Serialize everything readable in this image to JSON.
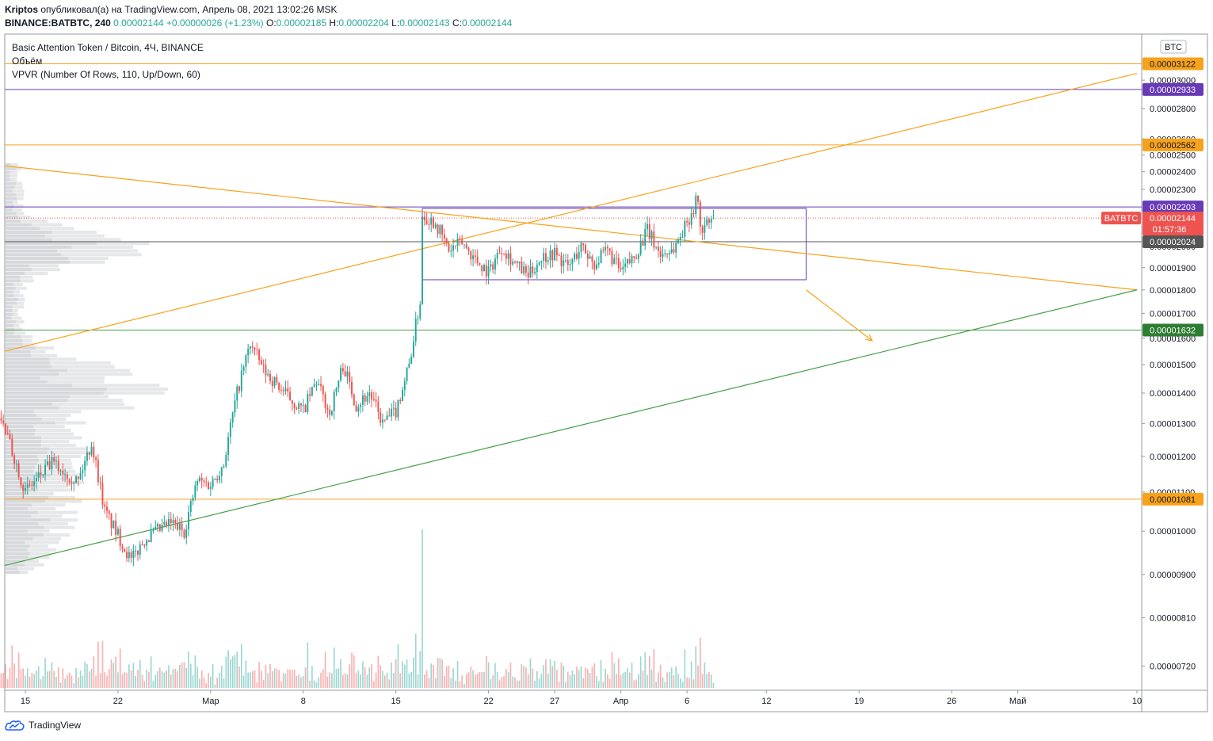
{
  "header": {
    "author": "Kriptos",
    "published_text": "опубликовал(а) на TradingView.com, Апрель 08, 2021 13:02:26 MSK",
    "symbol": "BINANCE:BATBTC, 240",
    "last": "0.00002144",
    "change": "+0.00000026 (+1.23%)",
    "o_label": "O:",
    "o_value": "0.00002185",
    "h_label": "H:",
    "h_value": "0.00002204",
    "l_label": "L:",
    "l_value": "0.00002143",
    "c_label": "C:",
    "c_value": "0.00002144"
  },
  "legend": {
    "title": "Basic Attention Token / Bitcoin, 4Ч, BINANCE",
    "volume": "Объём",
    "vpvr": "VPVR (Number Of Rows, 110, Up/Down, 60)"
  },
  "currency_badge": "BTC",
  "footer": {
    "brand": "TradingView"
  },
  "colors": {
    "up": "#26a69a",
    "down": "#ef5350",
    "orange": "#f7a21b",
    "purple": "#673ab7",
    "green_line": "#43a047",
    "dark_badge": "#555555",
    "green_badge": "#2e7d32"
  },
  "chart_data": {
    "type": "candlestick",
    "title": "Basic Attention Token / Bitcoin, 4Ч, BINANCE",
    "y_scale": "log",
    "ylim": [
      6.8e-06,
      3.35e-05
    ],
    "y_ticks": [
      "0.00003000",
      "0.00002800",
      "0.00002600",
      "0.00002500",
      "0.00002400",
      "0.00002300",
      "0.00002000",
      "0.00001900",
      "0.00001800",
      "0.00001700",
      "0.00001600",
      "0.00001500",
      "0.00001400",
      "0.00001300",
      "0.00001200",
      "0.00001100",
      "0.00001000",
      "0.00000900",
      "0.00000810",
      "0.00000720"
    ],
    "x_ticks": [
      {
        "label": "15",
        "date": "2021-02-15"
      },
      {
        "label": "22",
        "date": "2021-02-22"
      },
      {
        "label": "Мар",
        "date": "2021-03-01"
      },
      {
        "label": "8",
        "date": "2021-03-08"
      },
      {
        "label": "15",
        "date": "2021-03-15"
      },
      {
        "label": "22",
        "date": "2021-03-22"
      },
      {
        "label": "27",
        "date": "2021-03-27"
      },
      {
        "label": "Апр",
        "date": "2021-04-01"
      },
      {
        "label": "6",
        "date": "2021-04-06"
      },
      {
        "label": "12",
        "date": "2021-04-12"
      },
      {
        "label": "19",
        "date": "2021-04-19"
      },
      {
        "label": "26",
        "date": "2021-04-26"
      },
      {
        "label": "Май",
        "date": "2021-05-01"
      },
      {
        "label": "10",
        "date": "2021-05-10"
      }
    ],
    "horizontal_levels": [
      {
        "value": "0.00003122",
        "color": "orange"
      },
      {
        "value": "0.00002933",
        "color": "purple"
      },
      {
        "value": "0.00002562",
        "color": "orange"
      },
      {
        "value": "0.00002203",
        "color": "purple"
      },
      {
        "value": "0.00002024",
        "color": "dark"
      },
      {
        "value": "0.00001632",
        "color": "green"
      },
      {
        "value": "0.00001081",
        "color": "orange"
      }
    ],
    "last_price": {
      "symbol": "BATBTC",
      "value": "0.00002144",
      "countdown": "01:57:36"
    },
    "rectangle": {
      "x0": "2021-03-17",
      "x1": "2021-04-15",
      "y0": 1.845e-05,
      "y1": 2.195e-05
    },
    "trend_lines": [
      {
        "color": "orange",
        "from": [
          "2021-02-13",
          2.435e-05
        ],
        "to": [
          "2021-05-10",
          1.8e-05
        ]
      },
      {
        "color": "orange",
        "from": [
          "2021-02-13",
          1.55e-05
        ],
        "to": [
          "2021-05-10",
          3.05e-05
        ]
      },
      {
        "color": "green",
        "from": [
          "2021-02-13",
          9.2e-06
        ],
        "to": [
          "2021-05-10",
          1.8e-05
        ]
      }
    ],
    "arrow": {
      "from": [
        "2021-04-15",
        1.8e-05
      ],
      "to": [
        "2021-04-20",
        1.59e-05
      ]
    },
    "price_path": [
      [
        "2021-02-13",
        1.33e-05
      ],
      [
        "2021-02-15",
        1.1e-05
      ],
      [
        "2021-02-17",
        1.18e-05
      ],
      [
        "2021-02-19",
        1.13e-05
      ],
      [
        "2021-02-20",
        1.24e-05
      ],
      [
        "2021-02-21",
        1.05e-05
      ],
      [
        "2021-02-23",
        9.3e-06
      ],
      [
        "2021-02-24",
        9.8e-06
      ],
      [
        "2021-02-26",
        1.02e-05
      ],
      [
        "2021-02-27",
        1e-05
      ],
      [
        "2021-02-28",
        1.13e-05
      ],
      [
        "2021-03-01",
        1.12e-05
      ],
      [
        "2021-03-02",
        1.18e-05
      ],
      [
        "2021-03-03",
        1.4e-05
      ],
      [
        "2021-03-04",
        1.58e-05
      ],
      [
        "2021-03-05",
        1.48e-05
      ],
      [
        "2021-03-07",
        1.38e-05
      ],
      [
        "2021-03-08",
        1.34e-05
      ],
      [
        "2021-03-09",
        1.44e-05
      ],
      [
        "2021-03-10",
        1.33e-05
      ],
      [
        "2021-03-11",
        1.5e-05
      ],
      [
        "2021-03-12",
        1.36e-05
      ],
      [
        "2021-03-13",
        1.4e-05
      ],
      [
        "2021-03-14",
        1.3e-05
      ],
      [
        "2021-03-15",
        1.34e-05
      ],
      [
        "2021-03-16",
        1.5e-05
      ],
      [
        "2021-03-17",
        1.8e-05
      ],
      [
        "2021-03-17",
        2.16e-05
      ],
      [
        "2021-03-18",
        2.12e-05
      ],
      [
        "2021-03-19",
        1.98e-05
      ],
      [
        "2021-03-20",
        2.02e-05
      ],
      [
        "2021-03-21",
        1.94e-05
      ],
      [
        "2021-03-22",
        1.88e-05
      ],
      [
        "2021-03-23",
        2e-05
      ],
      [
        "2021-03-24",
        1.92e-05
      ],
      [
        "2021-03-25",
        1.86e-05
      ],
      [
        "2021-03-26",
        1.95e-05
      ],
      [
        "2021-03-27",
        1.97e-05
      ],
      [
        "2021-03-28",
        1.9e-05
      ],
      [
        "2021-03-29",
        2e-05
      ],
      [
        "2021-03-30",
        1.92e-05
      ],
      [
        "2021-03-31",
        1.98e-05
      ],
      [
        "2021-04-01",
        1.88e-05
      ],
      [
        "2021-04-02",
        1.95e-05
      ],
      [
        "2021-04-03",
        2.08e-05
      ],
      [
        "2021-04-04",
        1.96e-05
      ],
      [
        "2021-04-05",
        1.99e-05
      ],
      [
        "2021-04-06",
        2.12e-05
      ],
      [
        "2021-04-07",
        2.28e-05
      ],
      [
        "2021-04-07",
        2.08e-05
      ],
      [
        "2021-04-08",
        2.14e-05
      ]
    ]
  }
}
